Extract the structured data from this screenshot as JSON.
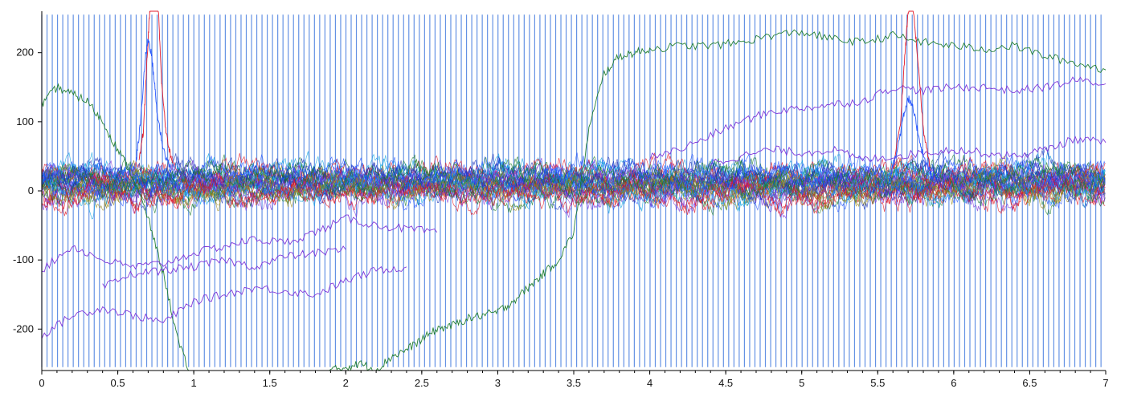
{
  "chart_data": {
    "type": "line",
    "title": "",
    "xlabel": "",
    "ylabel": "",
    "xlim": [
      0,
      7
    ],
    "ylim": [
      -260,
      260
    ],
    "x_ticks": [
      0,
      0.5,
      1,
      1.5,
      2,
      2.5,
      3,
      3.5,
      4,
      4.5,
      5,
      5.5,
      6,
      6.5,
      7
    ],
    "x_tick_labels": [
      "0",
      "0.5",
      "1",
      "1.5",
      "2",
      "2.5",
      "3",
      "3.5",
      "4",
      "4.5",
      "5",
      "5.5",
      "6",
      "6.5",
      "7"
    ],
    "y_ticks": [
      200,
      100,
      0,
      -100,
      -200
    ],
    "y_tick_labels": [
      "200",
      "100",
      "0",
      "-100",
      "-200"
    ],
    "grid": false,
    "legend": "none",
    "colors": {
      "stimulus": "#4a7fe0",
      "blue": "#1f4fff",
      "dark_blue": "#1a2fb5",
      "red": "#e01020",
      "green": "#1a7a2a",
      "purple": "#7b2fd8",
      "olive": "#9a8a1a",
      "cyan": "#0aa0e0"
    },
    "stimulus_markers": {
      "period": 0.0345,
      "start": 0.0,
      "end": 7.0,
      "top": 255,
      "bottom": -255
    },
    "series": [
      {
        "color": "#1a7a2a",
        "x": [
          0,
          0.1,
          0.2,
          0.3,
          0.4,
          0.5,
          0.6,
          0.7,
          0.8,
          0.9,
          1.0,
          1.1,
          1.2,
          1.3,
          1.4,
          1.5,
          1.6,
          1.7,
          1.8,
          1.9,
          2.0,
          2.1,
          2.2,
          2.3,
          2.4,
          2.5,
          2.6,
          2.7,
          2.8,
          2.9,
          3.0,
          3.1,
          3.2,
          3.3,
          3.4,
          3.5,
          3.6,
          3.7,
          3.8,
          3.9,
          4.0,
          4.2,
          4.4,
          4.6,
          4.8,
          5.0,
          5.2,
          5.4,
          5.6,
          5.8,
          6.0,
          6.2,
          6.4,
          6.6,
          6.8,
          7.0
        ],
        "y": [
          125,
          150,
          140,
          130,
          100,
          60,
          20,
          -40,
          -120,
          -220,
          -280,
          -300,
          -300,
          -300,
          -300,
          -300,
          -300,
          -300,
          -300,
          -260,
          -255,
          -250,
          -260,
          -240,
          -230,
          -215,
          -200,
          -195,
          -185,
          -180,
          -175,
          -160,
          -140,
          -120,
          -100,
          -60,
          90,
          170,
          195,
          200,
          205,
          210,
          210,
          215,
          225,
          230,
          220,
          215,
          225,
          215,
          210,
          205,
          210,
          195,
          185,
          175
        ]
      },
      {
        "color": "#7b2fd8",
        "x": [
          0,
          0.2,
          0.4,
          0.6,
          0.8,
          1.0,
          1.2,
          1.4,
          1.6,
          1.8,
          2.0,
          2.2,
          2.4
        ],
        "y": [
          -210,
          -180,
          -170,
          -180,
          -190,
          -160,
          -150,
          -140,
          -145,
          -150,
          -130,
          -115,
          -110
        ]
      },
      {
        "color": "#7b2fd8",
        "x": [
          0,
          0.2,
          0.4,
          0.6,
          0.8,
          1.0,
          1.2,
          1.4,
          1.6,
          1.8,
          2.0,
          2.2,
          2.4,
          2.6
        ],
        "y": [
          -115,
          -80,
          -100,
          -110,
          -105,
          -90,
          -80,
          -70,
          -75,
          -60,
          -40,
          -50,
          -55,
          -60
        ]
      },
      {
        "color": "#7b2fd8",
        "x": [
          0.4,
          0.6,
          0.8,
          1.0,
          1.2,
          1.4,
          1.6,
          1.8,
          2.0
        ],
        "y": [
          -140,
          -120,
          -115,
          -110,
          -100,
          -110,
          -95,
          -90,
          -85
        ]
      },
      {
        "color": "#7b2fd8",
        "x": [
          4.0,
          4.2,
          4.4,
          4.6,
          4.8,
          5.0,
          5.2,
          5.4,
          5.6,
          5.8,
          6.0,
          6.2,
          6.4,
          6.6,
          6.8,
          7.0
        ],
        "y": [
          50,
          60,
          80,
          100,
          115,
          120,
          125,
          130,
          150,
          145,
          150,
          150,
          145,
          150,
          160,
          155
        ]
      },
      {
        "color": "#7b2fd8",
        "x": [
          4.4,
          4.6,
          4.8,
          5.0,
          5.2,
          5.4,
          5.6,
          5.8,
          6.0,
          6.2,
          6.4,
          6.6,
          6.8,
          7.0
        ],
        "y": [
          40,
          50,
          60,
          55,
          60,
          45,
          50,
          55,
          60,
          55,
          50,
          60,
          75,
          70
        ]
      },
      {
        "color": "#e01020",
        "x": [
          0.64,
          0.67,
          0.69,
          0.71,
          0.73,
          0.75,
          0.77,
          0.79,
          0.82,
          0.86
        ],
        "y": [
          40,
          90,
          180,
          260,
          300,
          300,
          250,
          150,
          80,
          40
        ]
      },
      {
        "color": "#1f4fff",
        "x": [
          0.62,
          0.65,
          0.68,
          0.7,
          0.72,
          0.74,
          0.76,
          0.8,
          0.85
        ],
        "y": [
          40,
          100,
          190,
          220,
          200,
          160,
          110,
          60,
          30
        ]
      },
      {
        "color": "#e01020",
        "x": [
          5.6,
          5.65,
          5.68,
          5.7,
          5.73,
          5.76,
          5.8,
          5.85
        ],
        "y": [
          30,
          100,
          200,
          260,
          270,
          200,
          90,
          30
        ]
      },
      {
        "color": "#1f4fff",
        "x": [
          5.58,
          5.63,
          5.67,
          5.7,
          5.73,
          5.76,
          5.8,
          5.86
        ],
        "y": [
          20,
          60,
          110,
          135,
          120,
          90,
          50,
          20
        ]
      }
    ],
    "noise_band": {
      "center": 10,
      "amplitude": 45,
      "bundle_colors": [
        "#1f4fff",
        "#e01020",
        "#1a7a2a",
        "#7b2fd8",
        "#1a2fb5",
        "#0aa0e0",
        "#9a8a1a"
      ]
    }
  }
}
